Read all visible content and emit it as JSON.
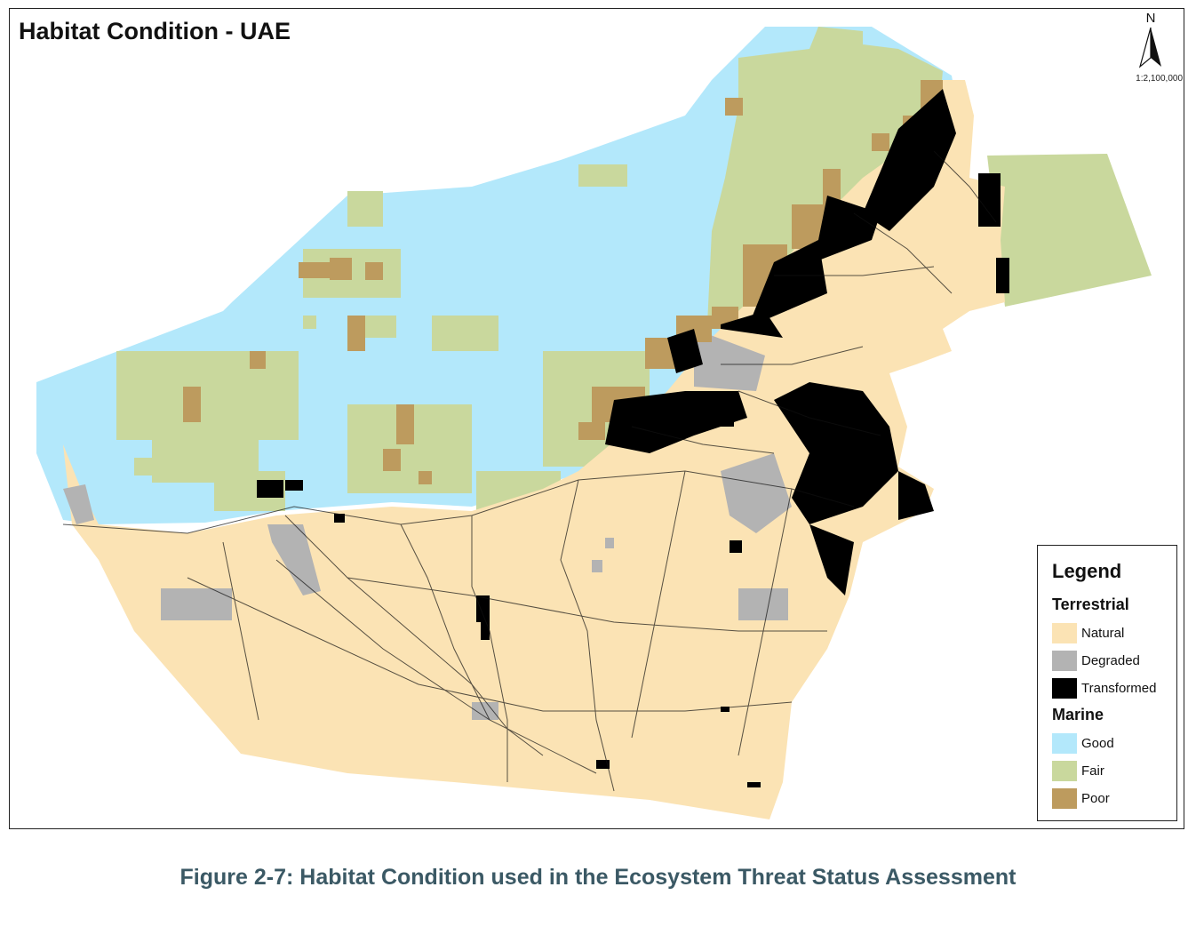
{
  "map": {
    "title": "Habitat Condition - UAE",
    "north_label": "N",
    "scale": "1:2,100,000"
  },
  "legend": {
    "title": "Legend",
    "groups": [
      {
        "name": "Terrestrial",
        "items": [
          {
            "label": "Natural",
            "color": "#fbe3b4"
          },
          {
            "label": "Degraded",
            "color": "#b3b3b3"
          },
          {
            "label": "Transformed",
            "color": "#000000"
          }
        ]
      },
      {
        "name": "Marine",
        "items": [
          {
            "label": "Good",
            "color": "#b3e8fb"
          },
          {
            "label": "Fair",
            "color": "#c9d89d"
          },
          {
            "label": "Poor",
            "color": "#bd9b5e"
          }
        ]
      }
    ]
  },
  "caption": "Figure 2-7: Habitat Condition used in the Ecosystem Threat Status Assessment"
}
